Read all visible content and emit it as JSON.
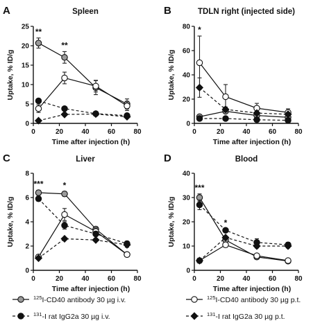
{
  "chart_data": [
    {
      "type": "line",
      "panel": "A",
      "title": "Spleen",
      "xlabel": "Time after injection (h)",
      "ylabel": "Uptake, % ID/g",
      "xlim": [
        0,
        80
      ],
      "ylim": [
        0,
        25
      ],
      "xticks": [
        0,
        20,
        40,
        60,
        80
      ],
      "yticks": [
        0,
        5,
        10,
        15,
        20,
        25
      ],
      "x": [
        4,
        24,
        48,
        72
      ],
      "series": [
        {
          "key": "cd40_iv",
          "values": [
            20.7,
            17.0,
            9.2,
            5.0
          ],
          "err": [
            1.3,
            1.5,
            1.8,
            1.3
          ]
        },
        {
          "key": "cd40_pt",
          "values": [
            3.8,
            11.7,
            9.6,
            4.5
          ],
          "err": [
            1.0,
            1.5,
            1.5,
            1.2
          ]
        },
        {
          "key": "igg_iv",
          "values": [
            5.8,
            3.8,
            2.5,
            2.0
          ],
          "err": [
            0.3,
            0.3,
            0.3,
            0.3
          ]
        },
        {
          "key": "igg_pt",
          "values": [
            0.7,
            2.3,
            2.4,
            1.7
          ],
          "err": [
            0.2,
            0.3,
            0.3,
            0.3
          ]
        }
      ],
      "annotations": [
        {
          "text": "**",
          "x": 4
        },
        {
          "text": "**",
          "x": 24
        }
      ]
    },
    {
      "type": "line",
      "panel": "B",
      "title": "TDLN right (injected side)",
      "xlabel": "Time after injection (h)",
      "ylabel": "Uptake, % ID/g",
      "xlim": [
        0,
        80
      ],
      "ylim": [
        0,
        80
      ],
      "xticks": [
        0,
        20,
        40,
        60,
        80
      ],
      "yticks": [
        0,
        20,
        40,
        60,
        80
      ],
      "x": [
        4,
        24,
        48,
        72
      ],
      "series": [
        {
          "key": "cd40_iv",
          "values": [
            5.5,
            10.0,
            6.5,
            5.0
          ],
          "err": [
            1.0,
            1.5,
            1.0,
            1.0
          ]
        },
        {
          "key": "cd40_pt",
          "values": [
            50.0,
            22.0,
            12.5,
            9.0
          ],
          "err": [
            22.0,
            10.0,
            4.0,
            3.0
          ]
        },
        {
          "key": "igg_iv",
          "values": [
            4.0,
            4.0,
            3.0,
            2.5
          ],
          "err": [
            0.5,
            0.5,
            0.5,
            0.5
          ]
        },
        {
          "key": "igg_pt",
          "values": [
            29.5,
            11.5,
            8.5,
            7.5
          ],
          "err": [
            8.0,
            2.0,
            1.5,
            1.5
          ]
        }
      ],
      "annotations": [
        {
          "text": "*",
          "x": 4
        }
      ]
    },
    {
      "type": "line",
      "panel": "C",
      "title": "Liver",
      "xlabel": "Time after injection (h)",
      "ylabel": "Uptake, % ID/g",
      "xlim": [
        0,
        80
      ],
      "ylim": [
        0,
        8
      ],
      "xticks": [
        0,
        20,
        40,
        60,
        80
      ],
      "yticks": [
        0,
        2,
        4,
        6,
        8
      ],
      "x": [
        4,
        24,
        48,
        72
      ],
      "series": [
        {
          "key": "cd40_iv",
          "values": [
            6.4,
            6.3,
            3.4,
            1.3
          ],
          "err": [
            0.2,
            0.2,
            0.2,
            0.1
          ]
        },
        {
          "key": "cd40_pt",
          "values": [
            1.1,
            4.6,
            3.2,
            1.3
          ],
          "err": [
            0.2,
            0.5,
            0.3,
            0.1
          ]
        },
        {
          "key": "igg_iv",
          "values": [
            5.9,
            3.7,
            3.0,
            2.2
          ],
          "err": [
            0.2,
            0.3,
            0.2,
            0.2
          ]
        },
        {
          "key": "igg_pt",
          "values": [
            1.0,
            2.6,
            2.5,
            2.1
          ],
          "err": [
            0.1,
            0.1,
            0.1,
            0.2
          ]
        }
      ],
      "annotations": [
        {
          "text": "***",
          "x": 4
        },
        {
          "text": "*",
          "x": 24
        }
      ]
    },
    {
      "type": "line",
      "panel": "D",
      "title": "Blood",
      "xlabel": "Time after injection (h)",
      "ylabel": "Uptake, % ID/g",
      "xlim": [
        0,
        80
      ],
      "ylim": [
        0,
        40
      ],
      "xticks": [
        0,
        20,
        40,
        60,
        80
      ],
      "yticks": [
        0,
        10,
        20,
        30,
        40
      ],
      "x": [
        4,
        24,
        48,
        72
      ],
      "series": [
        {
          "key": "cd40_iv",
          "values": [
            30.0,
            12.5,
            5.5,
            3.8
          ],
          "err": [
            1.5,
            1.0,
            0.5,
            0.3
          ]
        },
        {
          "key": "cd40_pt",
          "values": [
            4.0,
            10.5,
            6.0,
            4.0
          ],
          "err": [
            1.0,
            1.0,
            0.8,
            0.3
          ]
        },
        {
          "key": "igg_iv",
          "values": [
            27.0,
            16.5,
            11.5,
            10.5
          ],
          "err": [
            2.0,
            0.5,
            1.5,
            1.0
          ]
        },
        {
          "key": "igg_pt",
          "values": [
            4.0,
            13.5,
            10.0,
            10.0
          ],
          "err": [
            1.0,
            0.5,
            0.8,
            0.8
          ]
        }
      ],
      "annotations": [
        {
          "text": "***",
          "x": 4
        },
        {
          "text": "*",
          "x": 24
        }
      ]
    }
  ],
  "legend": [
    {
      "key": "cd40_iv",
      "label": "125I-CD40 antibody 30 µg i.v.",
      "isotope": "125",
      "text": "I-CD40 antibody 30 µg i.v.",
      "marker": "circle",
      "fill": "#9a9a9a",
      "line": "solid"
    },
    {
      "key": "cd40_pt",
      "label": "125I-CD40 antibody 30 µg p.t.",
      "isotope": "125",
      "text": "I-CD40 antibody 30 µg p.t.",
      "marker": "circle",
      "fill": "#ffffff",
      "line": "solid"
    },
    {
      "key": "igg_iv",
      "label": "131-I rat IgG2a 30 µg i.v.",
      "isotope": "131",
      "text": "-I rat IgG2a 30 µg i.v.",
      "marker": "circle",
      "fill": "#111111",
      "line": "dashed"
    },
    {
      "key": "igg_pt",
      "label": "131-I rat IgG2a 30 µg p.t.",
      "isotope": "131",
      "text": "-I rat IgG2a 30 µg p.t.",
      "marker": "diamond",
      "fill": "#111111",
      "line": "dashed"
    }
  ]
}
